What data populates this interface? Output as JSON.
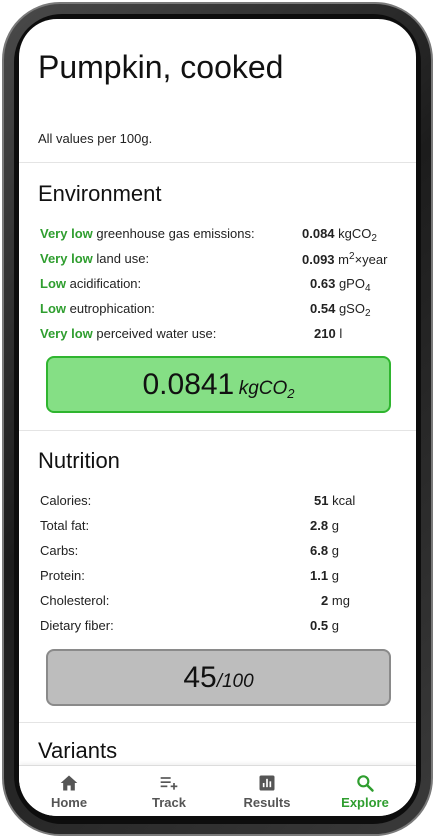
{
  "food": {
    "title": "Pumpkin, cooked",
    "subtitle": "All values per 100g."
  },
  "environment": {
    "heading": "Environment",
    "rows": [
      {
        "level": "Very low",
        "label": " greenhouse gas emissions:",
        "value": "0.084",
        "unit": "kgCO",
        "unit_sub": "2"
      },
      {
        "level": "Very low",
        "label": " land use:",
        "value": "0.093",
        "unit": "m",
        "unit_sup": "2",
        "unit_tail": "×year"
      },
      {
        "level": "Low",
        "label": " acidification:",
        "value": "0.63",
        "unit": "gPO",
        "unit_sub": "4"
      },
      {
        "level": "Low",
        "label": " eutrophication:",
        "value": "0.54",
        "unit": "gSO",
        "unit_sub": "2"
      },
      {
        "level": "Very low",
        "label": " perceived water use:",
        "value": "210",
        "unit": "l"
      }
    ],
    "score": "0.0841",
    "score_unit": "kgCO",
    "score_unit_sub": "2",
    "score_color": "#85df85",
    "level_color": "#2f9e2f"
  },
  "nutrition": {
    "heading": "Nutrition",
    "rows": [
      {
        "label": "Calories:",
        "value": "51",
        "unit": "kcal"
      },
      {
        "label": "Total fat:",
        "value": "2.8",
        "unit": "g"
      },
      {
        "label": "Carbs:",
        "value": "6.8",
        "unit": "g"
      },
      {
        "label": "Protein:",
        "value": "1.1",
        "unit": "g"
      },
      {
        "label": "Cholesterol:",
        "value": "2",
        "unit": "mg"
      },
      {
        "label": "Dietary fiber:",
        "value": "0.5",
        "unit": "g"
      }
    ],
    "score": "45",
    "score_unit": "/100",
    "score_color": "#bdbdbd"
  },
  "variants": {
    "heading": "Variants"
  },
  "nav": {
    "items": [
      {
        "label": "Home",
        "icon": "home-icon"
      },
      {
        "label": "Track",
        "icon": "playlist-add-icon"
      },
      {
        "label": "Results",
        "icon": "bar-chart-icon"
      },
      {
        "label": "Explore",
        "icon": "search-icon"
      }
    ],
    "active": "Explore",
    "active_color": "#2f9e2f"
  }
}
